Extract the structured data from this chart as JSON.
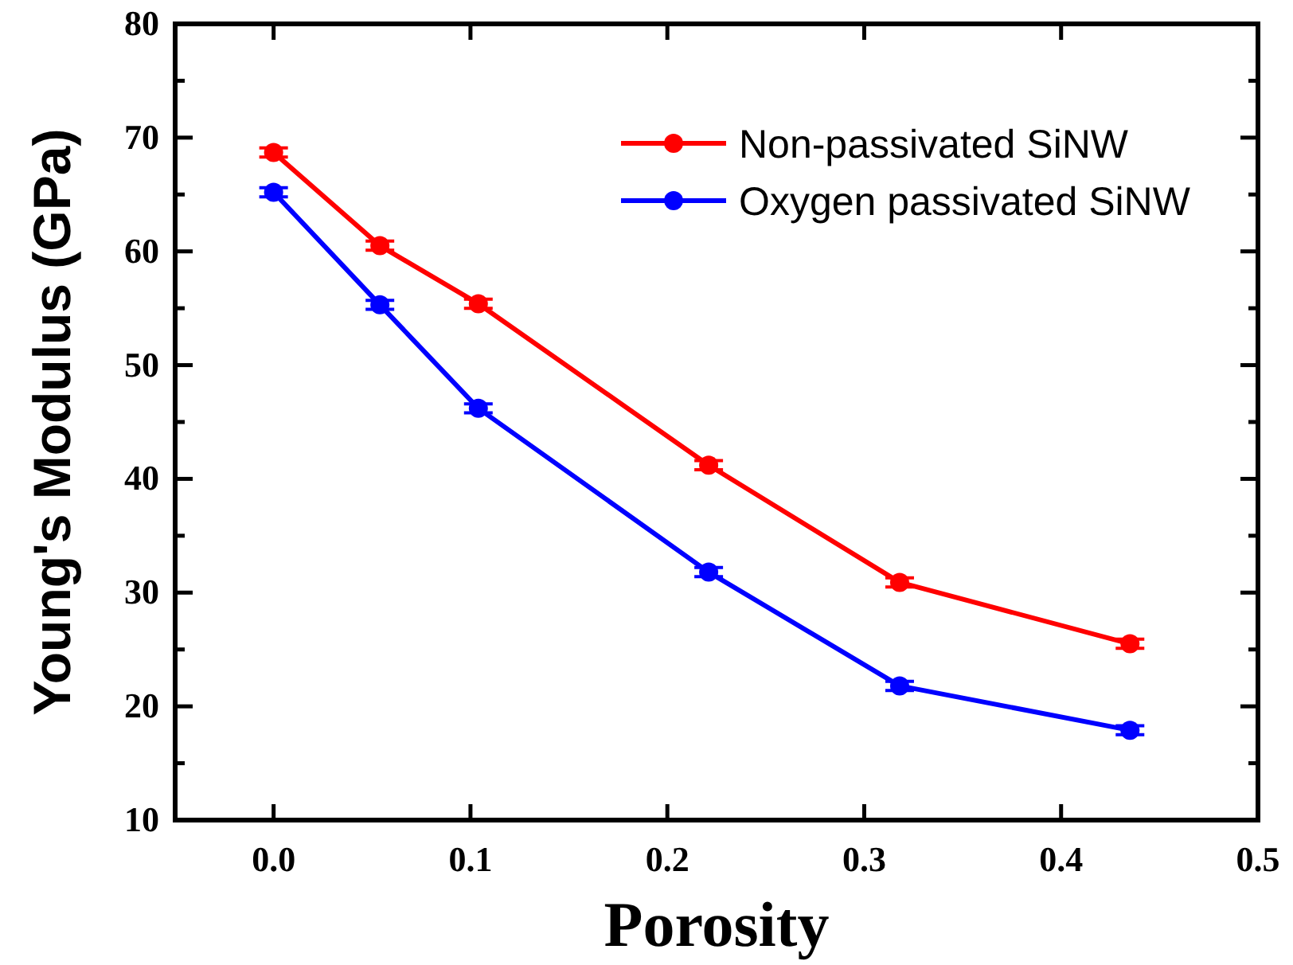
{
  "chart_data": {
    "type": "line",
    "xlabel": "Porosity",
    "ylabel": "Young's Modulus (GPa)",
    "xlim": [
      -0.05,
      0.5
    ],
    "xticks": [
      {
        "value": 0,
        "label": "0.0"
      },
      0.1,
      0.2,
      0.3,
      0.4,
      0.5
    ],
    "ylim": [
      10,
      80
    ],
    "yticks": [
      10,
      {
        "value": 15,
        "label": null
      },
      20,
      {
        "value": 25,
        "label": null
      },
      30,
      {
        "value": 35,
        "label": null
      },
      40,
      {
        "value": 45,
        "label": null
      },
      50,
      {
        "value": 55,
        "label": null
      },
      60,
      {
        "value": 65,
        "label": null
      },
      70,
      {
        "value": 75,
        "label": null
      },
      80
    ],
    "x": [
      0,
      0.054,
      0.104,
      0.221,
      0.318,
      0.435
    ],
    "series": [
      {
        "name": "Non-passivated SiNW",
        "color": "#ff0000",
        "values": [
          68.7,
          60.5,
          55.4,
          41.2,
          30.9,
          25.5
        ],
        "errors": [
          0.4,
          0.4,
          0.4,
          0.4,
          0.4,
          0.4
        ]
      },
      {
        "name": "Oxygen passivated SiNW",
        "color": "#0000ff",
        "values": [
          65.2,
          55.3,
          46.2,
          31.8,
          21.8,
          17.9
        ],
        "errors": [
          0.4,
          0.4,
          0.4,
          0.4,
          0.4,
          0.4
        ]
      }
    ],
    "marker": "circle",
    "line_style": "solid",
    "legend": "top right",
    "grid": false
  }
}
